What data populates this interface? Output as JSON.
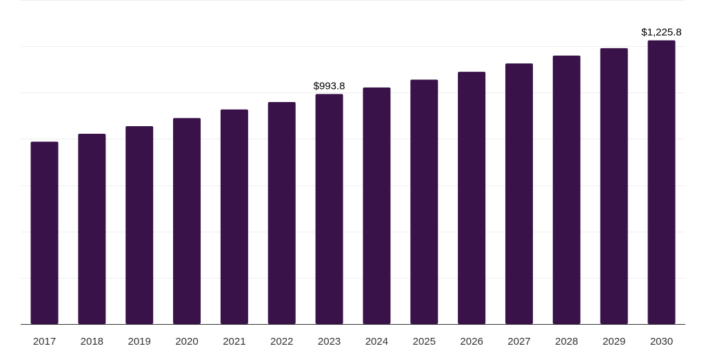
{
  "chart_data": {
    "type": "bar",
    "title": "",
    "xlabel": "",
    "ylabel": "",
    "categories": [
      "2017",
      "2018",
      "2019",
      "2020",
      "2021",
      "2022",
      "2023",
      "2024",
      "2025",
      "2026",
      "2027",
      "2028",
      "2029",
      "2030"
    ],
    "values": [
      788.0,
      822.0,
      855.0,
      890.0,
      927.0,
      959.0,
      993.8,
      1022.0,
      1056.0,
      1090.0,
      1126.0,
      1160.0,
      1192.0,
      1225.8
    ],
    "data_labels": [
      {
        "category": "2023",
        "text": "$993.8"
      },
      {
        "category": "2030",
        "text": "$1,225.8"
      }
    ],
    "ylim": [
      0,
      1400
    ],
    "ytick_step": 200,
    "grid": true,
    "legend": "none",
    "bar_color": "#381249",
    "gridline_color": "#eeeeee",
    "axis_color": "#333333"
  }
}
